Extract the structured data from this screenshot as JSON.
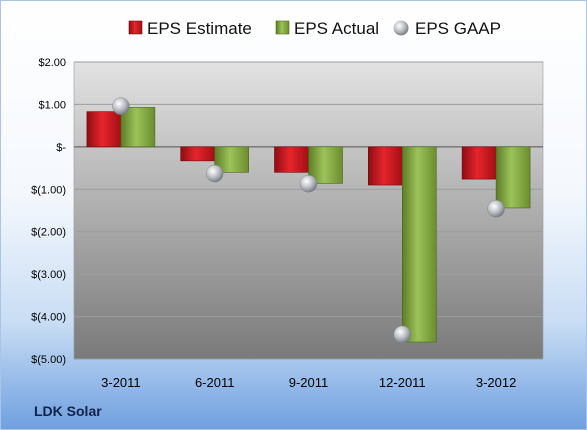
{
  "company_label": "LDK Solar",
  "chart_data": {
    "type": "bar",
    "categories": [
      "3-2011",
      "6-2011",
      "9-2011",
      "12-2011",
      "3-2012"
    ],
    "series": [
      {
        "name": "EPS Estimate",
        "kind": "bar",
        "color": "#c9151d",
        "values": [
          0.83,
          -0.33,
          -0.6,
          -0.9,
          -0.76
        ]
      },
      {
        "name": "EPS Actual",
        "kind": "bar",
        "color": "#7fa43a",
        "values": [
          0.93,
          -0.6,
          -0.86,
          -4.6,
          -1.44
        ]
      },
      {
        "name": "EPS GAAP",
        "kind": "marker",
        "color": "#b8bcc2",
        "values": [
          0.96,
          -0.63,
          -0.87,
          -4.42,
          -1.46
        ]
      }
    ],
    "y_ticks": [
      {
        "value": 2,
        "label": "$2.00"
      },
      {
        "value": 1,
        "label": "$1.00"
      },
      {
        "value": 0,
        "label": "$-"
      },
      {
        "value": -1,
        "label": "$(1.00)"
      },
      {
        "value": -2,
        "label": "$(2.00)"
      },
      {
        "value": -3,
        "label": "$(3.00)"
      },
      {
        "value": -4,
        "label": "$(4.00)"
      },
      {
        "value": -5,
        "label": "$(5.00)"
      }
    ],
    "ylim": [
      -5,
      2
    ],
    "grid": true,
    "legend": "top"
  }
}
